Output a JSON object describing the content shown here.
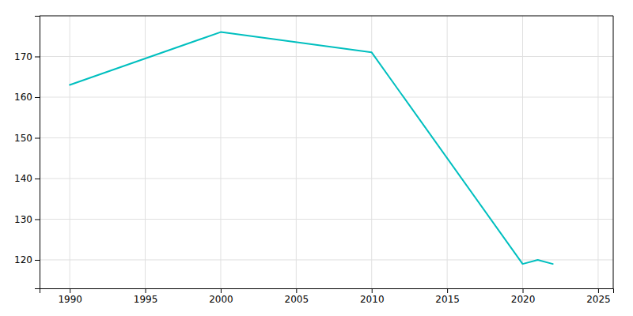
{
  "chart_data": {
    "type": "line",
    "x": [
      1990,
      2000,
      2010,
      2020,
      2021,
      2022
    ],
    "values": [
      163,
      176,
      171,
      119,
      120,
      119
    ],
    "color": "#00BFBF",
    "xlim": [
      1988,
      2026
    ],
    "ylim": [
      113,
      180
    ],
    "xticks": [
      1990,
      1995,
      2000,
      2005,
      2010,
      2015,
      2020,
      2025
    ],
    "yticks": [
      120,
      130,
      140,
      150,
      160,
      170
    ],
    "grid": true
  }
}
